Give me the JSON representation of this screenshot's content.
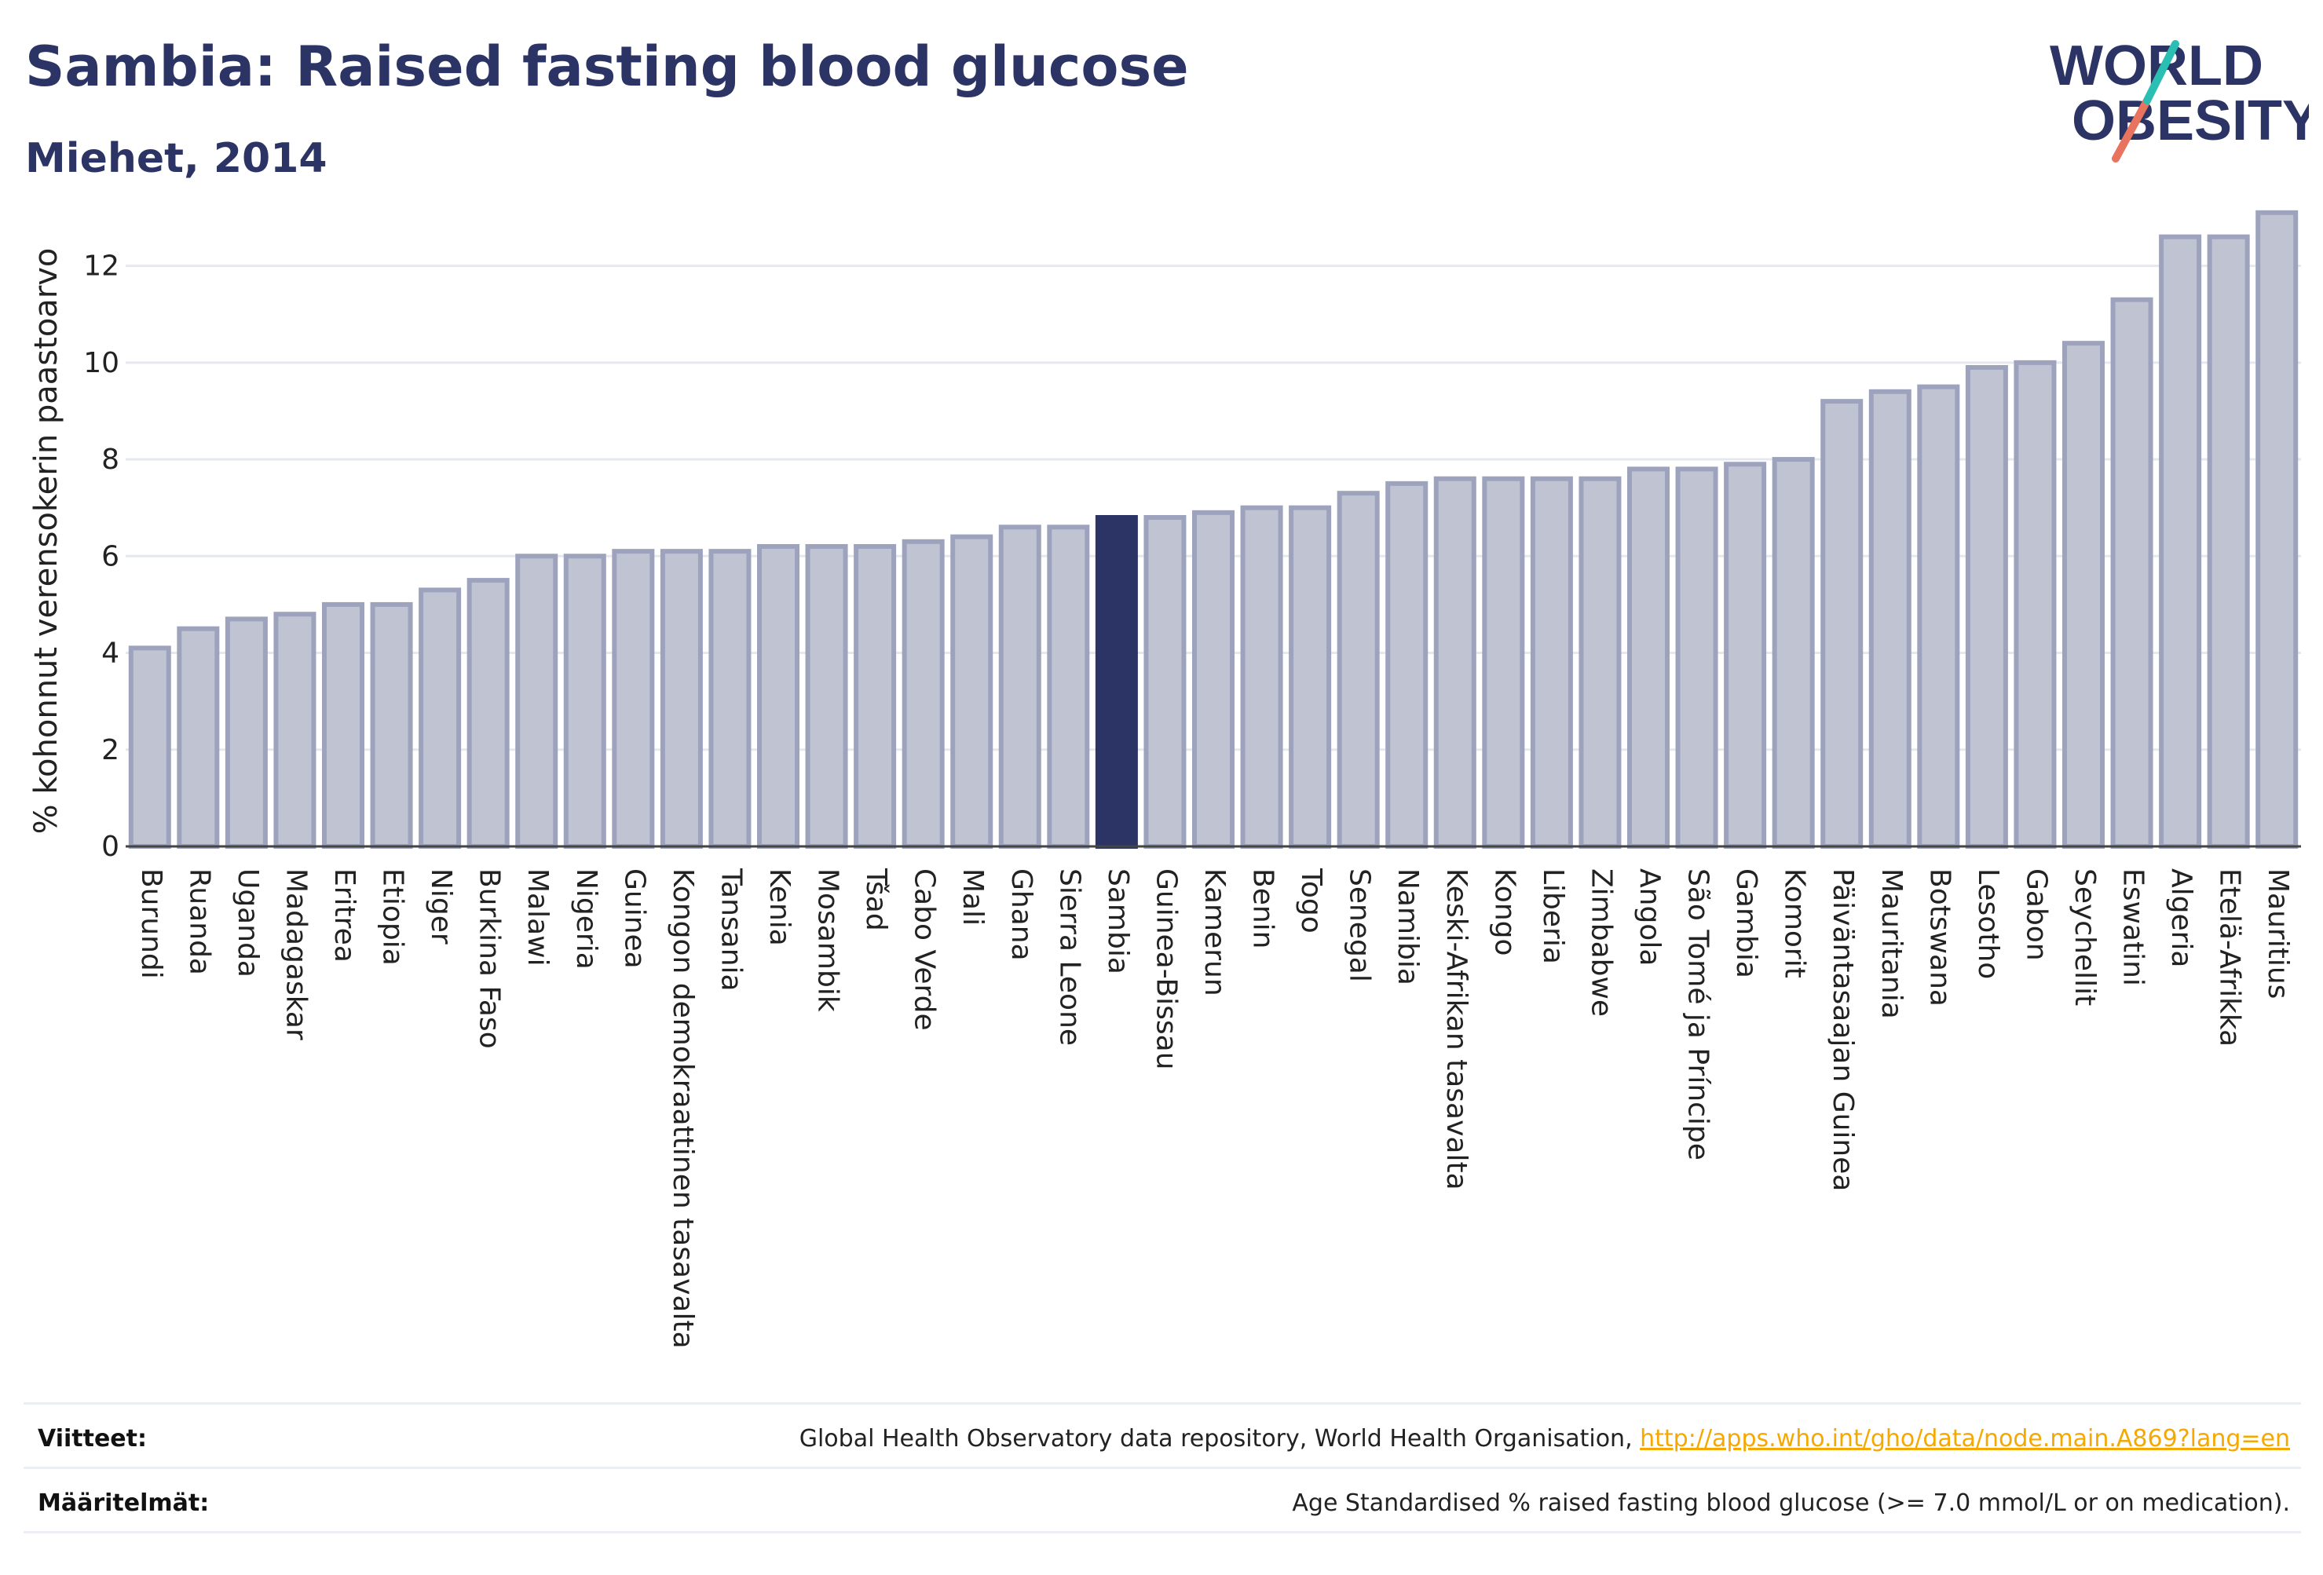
{
  "header": {
    "title": "Sambia: Raised fasting blood glucose",
    "subtitle": "Miehet, 2014"
  },
  "logo": {
    "line1": "WORLD",
    "line2": "OBESITY"
  },
  "footer": {
    "references_key": "Viitteet:",
    "references_text": "Global Health Observatory data repository, World Health Organisation, ",
    "references_link": "http://apps.who.int/gho/data/node.main.A869?lang=en",
    "definitions_key": "Määritelmät:",
    "definitions_text": "Age Standardised % raised fasting blood glucose (>= 7.0 mmol/L or on medication)."
  },
  "colors": {
    "bar_fill": "#c0c4d2",
    "bar_stroke": "#9da3bd",
    "highlight": "#2b3464",
    "title": "#2b3464",
    "grid": "#e6e8f0",
    "link": "#f5a800"
  },
  "chart_data": {
    "type": "bar",
    "ylabel": "% kohonnut verensokerin paastoarvo",
    "ylim": [
      0,
      13.6
    ],
    "yticks": [
      0,
      2,
      4,
      6,
      8,
      10,
      12
    ],
    "grid": true,
    "highlight": "Sambia",
    "categories": [
      "Burundi",
      "Ruanda",
      "Uganda",
      "Madagaskar",
      "Eritrea",
      "Etiopia",
      "Niger",
      "Burkina Faso",
      "Malawi",
      "Nigeria",
      "Guinea",
      "Kongon demokraattinen tasavalta",
      "Tansania",
      "Kenia",
      "Mosambik",
      "Tšad",
      "Cabo Verde",
      "Mali",
      "Ghana",
      "Sierra Leone",
      "Sambia",
      "Guinea-Bissau",
      "Kamerun",
      "Benin",
      "Togo",
      "Senegal",
      "Namibia",
      "Keski-Afrikan tasavalta",
      "Kongo",
      "Liberia",
      "Zimbabwe",
      "Angola",
      "São Tomé ja Príncipe",
      "Gambia",
      "Komorit",
      "Päiväntasaajan Guinea",
      "Mauritania",
      "Botswana",
      "Lesotho",
      "Gabon",
      "Seychellit",
      "Eswatini",
      "Algeria",
      "Etelä-Afrikka",
      "Mauritius"
    ],
    "values": [
      4.1,
      4.5,
      4.7,
      4.8,
      5.0,
      5.0,
      5.3,
      5.5,
      6.0,
      6.0,
      6.1,
      6.1,
      6.1,
      6.2,
      6.2,
      6.2,
      6.3,
      6.4,
      6.6,
      6.6,
      6.8,
      6.8,
      6.9,
      7.0,
      7.0,
      7.3,
      7.5,
      7.6,
      7.6,
      7.6,
      7.6,
      7.8,
      7.8,
      7.9,
      8.0,
      9.2,
      9.4,
      9.5,
      9.9,
      10.0,
      10.4,
      11.3,
      12.6,
      12.6,
      13.1
    ]
  }
}
